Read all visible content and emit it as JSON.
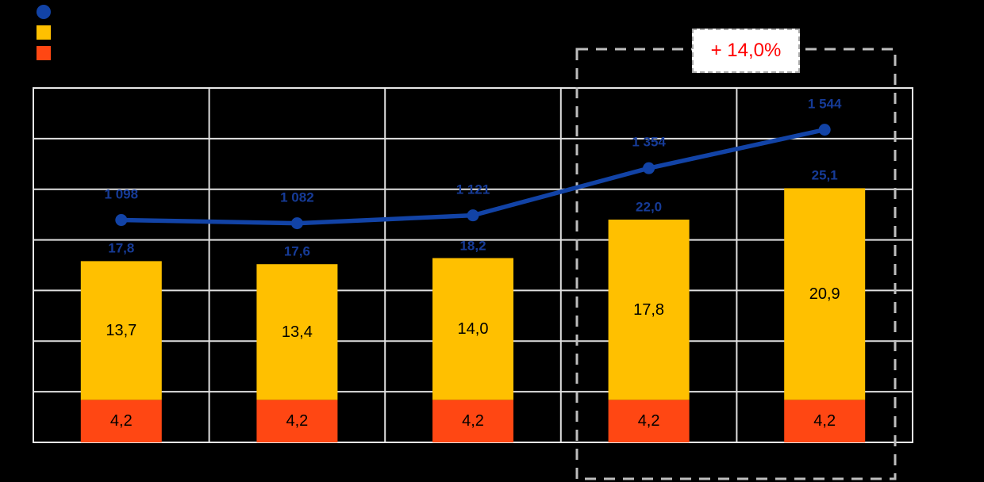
{
  "page": {
    "background": "#000000"
  },
  "legend": {
    "items": [
      {
        "name": "line-series",
        "marker": "circle",
        "color": "#1243A6",
        "label": ""
      },
      {
        "name": "yellow-bar-series",
        "marker": "square",
        "color": "#FFC000",
        "label": ""
      },
      {
        "name": "orange-bar-series",
        "marker": "square",
        "color": "#FF4713",
        "label": ""
      }
    ]
  },
  "chart_data": {
    "type": "bar",
    "subtype": "stacked-bars-with-line-overlay",
    "categories": [
      "",
      "",
      "",
      "",
      ""
    ],
    "series": [
      {
        "name": "blue-line",
        "type": "line",
        "color": "#1243A6",
        "label_color": "#163B97",
        "values": [
          1098,
          1082,
          1121,
          1354,
          1544
        ],
        "labels": [
          "1 098",
          "1 082",
          "1 121",
          "1 354",
          "1 544"
        ]
      },
      {
        "name": "yellow-segment",
        "type": "bar",
        "color": "#FFC000",
        "values": [
          13.7,
          13.4,
          14.0,
          17.8,
          20.9
        ],
        "labels": [
          "13,7",
          "13,4",
          "14,0",
          "17,8",
          "20,9"
        ]
      },
      {
        "name": "orange-segment",
        "type": "bar",
        "color": "#FF4713",
        "values": [
          4.2,
          4.2,
          4.2,
          4.2,
          4.2
        ],
        "labels": [
          "4,2",
          "4,2",
          "4,2",
          "4,2",
          "4,2"
        ]
      }
    ],
    "totals": {
      "values": [
        17.8,
        17.6,
        18.2,
        22.0,
        25.1
      ],
      "labels": [
        "17,8",
        "17,6",
        "18,2",
        "22,0",
        "25,1"
      ],
      "label_color": "#163B97"
    },
    "primary_axis": {
      "min": 0,
      "max": 35,
      "gridline_step": 5
    },
    "secondary_axis": {
      "min": 0,
      "max": 1750
    },
    "grid": true,
    "grid_color": "#E0E0E0",
    "legend_position": "top-left",
    "annotation": {
      "label": "+ 14,0%",
      "text_color": "#FF0000",
      "box_fill": "#FFFFFF",
      "highlight_last_n_categories": 2,
      "highlight_border_color": "#BEBEBE"
    }
  }
}
